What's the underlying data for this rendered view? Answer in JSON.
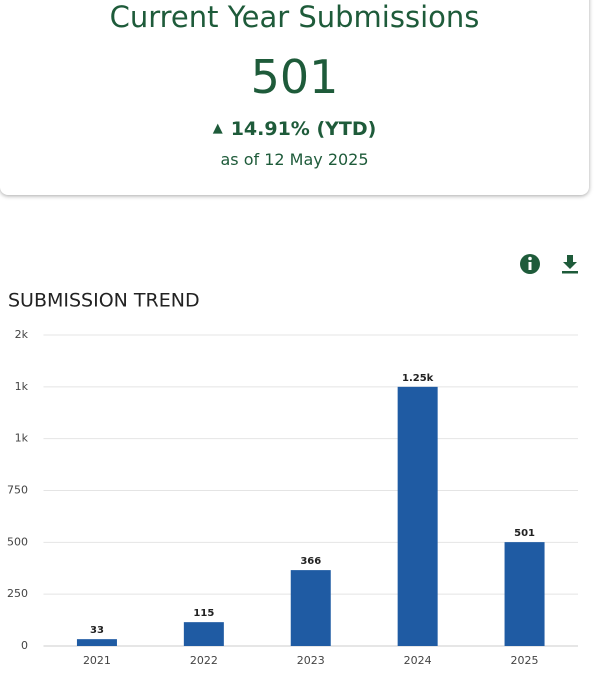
{
  "card": {
    "title": "Current Year Submissions",
    "value": "501",
    "change": "14.91% (YTD)",
    "date": "as of 12 May 2025"
  },
  "chart_data": {
    "type": "bar",
    "title": "SUBMISSION TREND",
    "categories": [
      "2021",
      "2022",
      "2023",
      "2024",
      "2025"
    ],
    "values": [
      33,
      115,
      366,
      1250,
      501
    ],
    "value_labels": [
      "33",
      "115",
      "366",
      "1.25k",
      "501"
    ],
    "color": "#1f5ba3",
    "ylim": [
      0,
      1500
    ],
    "yticks": [
      0,
      250,
      500,
      750,
      {
        "value": 1000,
        "label": "1k"
      },
      {
        "value": 1250,
        "label": "1k"
      },
      {
        "value": 1500,
        "label": "2k"
      }
    ],
    "grid": true
  }
}
